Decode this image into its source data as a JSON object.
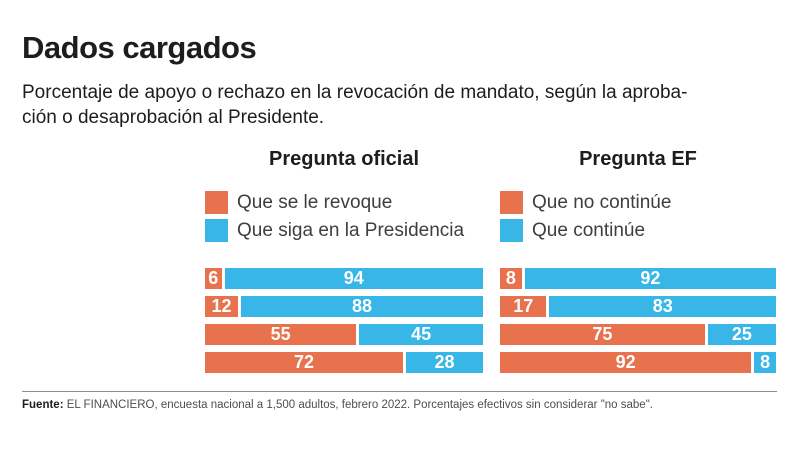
{
  "title": "Dados cargados",
  "subtitle": {
    "line1": "Porcentaje de apoyo o rechazo en la revocación de mandato, según la aproba-",
    "line2": "ción o desaprobación al Presidente."
  },
  "colors": {
    "orange": "#E8724E",
    "blue": "#38B6E8",
    "text_dark": "#1d1d1b",
    "text_gray": "#4e4e4e"
  },
  "charts": [
    {
      "header": "Pregunta oficial",
      "legend": [
        {
          "label": "Que se le revoque",
          "color": "#E8724E"
        },
        {
          "label": "Que siga en la Presidencia",
          "color": "#38B6E8"
        }
      ],
      "rows": [
        {
          "orange": 6,
          "blue": 94
        },
        {
          "orange": 12,
          "blue": 88
        },
        {
          "orange": 55,
          "blue": 45
        },
        {
          "orange": 72,
          "blue": 28
        }
      ]
    },
    {
      "header": "Pregunta EF",
      "legend": [
        {
          "label": "Que no continúe",
          "color": "#E8724E"
        },
        {
          "label": "Que continúe",
          "color": "#38B6E8"
        }
      ],
      "rows": [
        {
          "orange": 8,
          "blue": 92
        },
        {
          "orange": 17,
          "blue": 83
        },
        {
          "orange": 75,
          "blue": 25
        },
        {
          "orange": 92,
          "blue": 8
        }
      ]
    }
  ],
  "footer": {
    "source_label": "Fuente:",
    "source_text": " EL FINANCIERO, encuesta nacional a 1,500 adultos, febrero 2022. Porcentajes efectivos sin considerar \"no sabe\"."
  },
  "chart_data": [
    {
      "type": "bar",
      "orientation": "horizontal",
      "stacked": true,
      "title": "Pregunta oficial",
      "unit": "percent",
      "xlim": [
        0,
        100
      ],
      "grid": false,
      "legend_position": "top",
      "series": [
        {
          "name": "Que se le revoque",
          "color": "#E8724E",
          "values": [
            6,
            12,
            55,
            72
          ]
        },
        {
          "name": "Que siga en la Presidencia",
          "color": "#38B6E8",
          "values": [
            94,
            88,
            45,
            28
          ]
        }
      ]
    },
    {
      "type": "bar",
      "orientation": "horizontal",
      "stacked": true,
      "title": "Pregunta EF",
      "unit": "percent",
      "xlim": [
        0,
        100
      ],
      "grid": false,
      "legend_position": "top",
      "series": [
        {
          "name": "Que no continúe",
          "color": "#E8724E",
          "values": [
            8,
            17,
            75,
            92
          ]
        },
        {
          "name": "Que continúe",
          "color": "#38B6E8",
          "values": [
            92,
            83,
            25,
            8
          ]
        }
      ]
    }
  ]
}
